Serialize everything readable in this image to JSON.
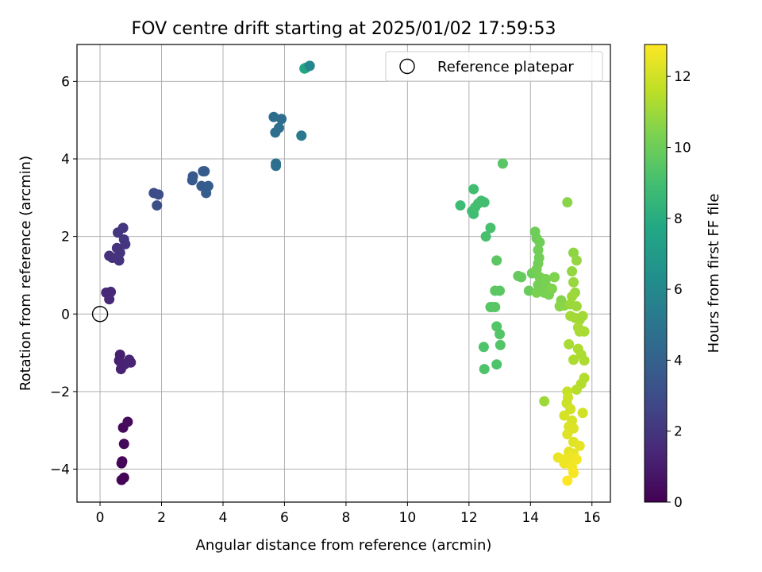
{
  "chart_data": {
    "type": "scatter",
    "title": "FOV centre drift starting at 2025/01/02 17:59:53",
    "xlabel": "Angular distance from reference (arcmin)",
    "ylabel": "Rotation from reference (arcmin)",
    "xlim": [
      -0.75,
      16.6
    ],
    "ylim": [
      -4.85,
      6.95
    ],
    "x_ticks": [
      0,
      2,
      4,
      6,
      8,
      10,
      12,
      14,
      16
    ],
    "y_ticks": [
      -4,
      -2,
      0,
      2,
      4,
      6
    ],
    "grid": true,
    "legend_position": "top-right",
    "legend": [
      "Reference platepar"
    ],
    "reference_point": [
      0,
      0
    ],
    "colorbar": {
      "label": "Hours from first FF file",
      "range": [
        0,
        12.9
      ],
      "ticks": [
        0,
        2,
        4,
        6,
        8,
        10,
        12
      ],
      "colormap": "viridis"
    },
    "points": [
      {
        "x": 0.78,
        "y": -4.22,
        "c": 0.1
      },
      {
        "x": 0.7,
        "y": -4.28,
        "c": 0.1
      },
      {
        "x": 0.72,
        "y": -3.8,
        "c": 0.2
      },
      {
        "x": 0.7,
        "y": -3.85,
        "c": 0.2
      },
      {
        "x": 0.78,
        "y": -3.35,
        "c": 0.3
      },
      {
        "x": 0.75,
        "y": -2.93,
        "c": 0.3
      },
      {
        "x": 0.9,
        "y": -2.78,
        "c": 0.4
      },
      {
        "x": 0.65,
        "y": -1.05,
        "c": 1.1
      },
      {
        "x": 0.62,
        "y": -1.2,
        "c": 1.1
      },
      {
        "x": 0.7,
        "y": -1.28,
        "c": 1.2
      },
      {
        "x": 0.68,
        "y": -1.42,
        "c": 1.2
      },
      {
        "x": 0.8,
        "y": -1.3,
        "c": 1.2
      },
      {
        "x": 0.95,
        "y": -1.18,
        "c": 1.3
      },
      {
        "x": 1.0,
        "y": -1.25,
        "c": 1.3
      },
      {
        "x": 0.2,
        "y": 0.55,
        "c": 1.5
      },
      {
        "x": 0.35,
        "y": 0.57,
        "c": 1.5
      },
      {
        "x": 0.3,
        "y": 0.38,
        "c": 1.5
      },
      {
        "x": 0.3,
        "y": 1.5,
        "c": 1.8
      },
      {
        "x": 0.4,
        "y": 1.45,
        "c": 1.8
      },
      {
        "x": 0.55,
        "y": 1.7,
        "c": 1.9
      },
      {
        "x": 0.65,
        "y": 1.58,
        "c": 1.9
      },
      {
        "x": 0.62,
        "y": 1.38,
        "c": 1.9
      },
      {
        "x": 0.58,
        "y": 2.1,
        "c": 2.0
      },
      {
        "x": 0.75,
        "y": 2.22,
        "c": 2.0
      },
      {
        "x": 0.78,
        "y": 1.92,
        "c": 2.0
      },
      {
        "x": 0.82,
        "y": 1.8,
        "c": 2.0
      },
      {
        "x": 1.75,
        "y": 3.12,
        "c": 3.0
      },
      {
        "x": 1.9,
        "y": 3.08,
        "c": 3.0
      },
      {
        "x": 1.85,
        "y": 2.8,
        "c": 3.1
      },
      {
        "x": 3.0,
        "y": 3.45,
        "c": 3.6
      },
      {
        "x": 3.02,
        "y": 3.55,
        "c": 3.6
      },
      {
        "x": 3.3,
        "y": 3.3,
        "c": 3.7
      },
      {
        "x": 3.35,
        "y": 3.68,
        "c": 3.7
      },
      {
        "x": 3.4,
        "y": 3.68,
        "c": 3.7
      },
      {
        "x": 3.45,
        "y": 3.12,
        "c": 3.8
      },
      {
        "x": 3.52,
        "y": 3.3,
        "c": 3.8
      },
      {
        "x": 5.65,
        "y": 5.08,
        "c": 4.6
      },
      {
        "x": 5.9,
        "y": 5.03,
        "c": 4.6
      },
      {
        "x": 5.82,
        "y": 4.8,
        "c": 4.7
      },
      {
        "x": 5.7,
        "y": 4.68,
        "c": 4.7
      },
      {
        "x": 5.72,
        "y": 3.88,
        "c": 4.7
      },
      {
        "x": 5.72,
        "y": 3.82,
        "c": 4.7
      },
      {
        "x": 6.55,
        "y": 4.6,
        "c": 5.2
      },
      {
        "x": 6.65,
        "y": 6.33,
        "c": 7.5
      },
      {
        "x": 6.7,
        "y": 6.35,
        "c": 7.5
      },
      {
        "x": 6.82,
        "y": 6.4,
        "c": 5.9
      },
      {
        "x": 11.72,
        "y": 2.8,
        "c": 8.8
      },
      {
        "x": 12.15,
        "y": 3.22,
        "c": 8.9
      },
      {
        "x": 12.1,
        "y": 2.65,
        "c": 8.9
      },
      {
        "x": 12.15,
        "y": 2.58,
        "c": 8.9
      },
      {
        "x": 12.3,
        "y": 2.85,
        "c": 9.0
      },
      {
        "x": 12.4,
        "y": 2.92,
        "c": 9.0
      },
      {
        "x": 12.5,
        "y": 2.88,
        "c": 9.0
      },
      {
        "x": 12.2,
        "y": 2.75,
        "c": 9.0
      },
      {
        "x": 12.7,
        "y": 2.22,
        "c": 9.1
      },
      {
        "x": 12.55,
        "y": 2.0,
        "c": 9.1
      },
      {
        "x": 13.1,
        "y": 3.88,
        "c": 9.5
      },
      {
        "x": 12.9,
        "y": 1.38,
        "c": 9.6
      },
      {
        "x": 12.85,
        "y": 0.6,
        "c": 9.6
      },
      {
        "x": 13.0,
        "y": 0.6,
        "c": 9.6
      },
      {
        "x": 12.7,
        "y": 0.18,
        "c": 9.5
      },
      {
        "x": 12.75,
        "y": 0.18,
        "c": 9.5
      },
      {
        "x": 12.85,
        "y": 0.18,
        "c": 9.5
      },
      {
        "x": 12.9,
        "y": -0.32,
        "c": 9.4
      },
      {
        "x": 13.0,
        "y": -0.52,
        "c": 9.4
      },
      {
        "x": 13.02,
        "y": -0.8,
        "c": 9.4
      },
      {
        "x": 12.48,
        "y": -0.85,
        "c": 9.3
      },
      {
        "x": 12.9,
        "y": -1.3,
        "c": 9.3
      },
      {
        "x": 12.5,
        "y": -1.42,
        "c": 9.3
      },
      {
        "x": 13.6,
        "y": 0.98,
        "c": 9.8
      },
      {
        "x": 13.7,
        "y": 0.95,
        "c": 9.8
      },
      {
        "x": 13.95,
        "y": 0.6,
        "c": 9.9
      },
      {
        "x": 14.05,
        "y": 1.05,
        "c": 10.0
      },
      {
        "x": 14.15,
        "y": 2.12,
        "c": 10.0
      },
      {
        "x": 14.2,
        "y": 1.95,
        "c": 10.0
      },
      {
        "x": 14.3,
        "y": 1.85,
        "c": 10.1
      },
      {
        "x": 14.25,
        "y": 1.65,
        "c": 10.1
      },
      {
        "x": 14.28,
        "y": 1.45,
        "c": 10.1
      },
      {
        "x": 14.25,
        "y": 1.3,
        "c": 10.1
      },
      {
        "x": 14.2,
        "y": 1.15,
        "c": 10.2
      },
      {
        "x": 14.3,
        "y": 0.95,
        "c": 10.2
      },
      {
        "x": 14.35,
        "y": 0.8,
        "c": 10.2
      },
      {
        "x": 14.4,
        "y": 0.7,
        "c": 10.3
      },
      {
        "x": 14.5,
        "y": 0.9,
        "c": 10.3
      },
      {
        "x": 14.55,
        "y": 0.7,
        "c": 10.3
      },
      {
        "x": 14.45,
        "y": 0.55,
        "c": 10.3
      },
      {
        "x": 14.2,
        "y": 0.55,
        "c": 10.3
      },
      {
        "x": 14.6,
        "y": 0.5,
        "c": 10.3
      },
      {
        "x": 14.7,
        "y": 0.65,
        "c": 10.4
      },
      {
        "x": 14.78,
        "y": 0.95,
        "c": 10.4
      },
      {
        "x": 14.25,
        "y": 0.75,
        "c": 10.2
      },
      {
        "x": 15.0,
        "y": 0.35,
        "c": 10.5
      },
      {
        "x": 14.95,
        "y": 0.2,
        "c": 10.6
      },
      {
        "x": 15.1,
        "y": 0.22,
        "c": 10.6
      },
      {
        "x": 15.2,
        "y": 2.88,
        "c": 10.6
      },
      {
        "x": 15.4,
        "y": 1.58,
        "c": 10.7
      },
      {
        "x": 15.5,
        "y": 1.38,
        "c": 10.8
      },
      {
        "x": 15.35,
        "y": 1.1,
        "c": 10.8
      },
      {
        "x": 15.4,
        "y": 0.82,
        "c": 10.9
      },
      {
        "x": 15.45,
        "y": 0.55,
        "c": 10.9
      },
      {
        "x": 15.35,
        "y": 0.45,
        "c": 11.0
      },
      {
        "x": 15.3,
        "y": 0.25,
        "c": 11.0
      },
      {
        "x": 15.5,
        "y": 0.2,
        "c": 11.0
      },
      {
        "x": 15.3,
        "y": -0.05,
        "c": 11.1
      },
      {
        "x": 15.45,
        "y": -0.1,
        "c": 11.1
      },
      {
        "x": 15.6,
        "y": -0.15,
        "c": 11.1
      },
      {
        "x": 15.7,
        "y": -0.05,
        "c": 11.1
      },
      {
        "x": 15.55,
        "y": -0.35,
        "c": 11.2
      },
      {
        "x": 15.6,
        "y": -0.45,
        "c": 11.2
      },
      {
        "x": 15.75,
        "y": -0.45,
        "c": 11.2
      },
      {
        "x": 15.25,
        "y": -0.78,
        "c": 11.2
      },
      {
        "x": 15.55,
        "y": -0.9,
        "c": 11.3
      },
      {
        "x": 15.65,
        "y": -1.05,
        "c": 11.3
      },
      {
        "x": 15.75,
        "y": -1.2,
        "c": 11.3
      },
      {
        "x": 15.4,
        "y": -1.18,
        "c": 11.3
      },
      {
        "x": 15.75,
        "y": -1.65,
        "c": 11.4
      },
      {
        "x": 15.65,
        "y": -1.8,
        "c": 11.4
      },
      {
        "x": 15.5,
        "y": -1.95,
        "c": 11.5
      },
      {
        "x": 14.45,
        "y": -2.25,
        "c": 11.0
      },
      {
        "x": 15.2,
        "y": -2.0,
        "c": 11.8
      },
      {
        "x": 15.22,
        "y": -2.15,
        "c": 11.9
      },
      {
        "x": 15.18,
        "y": -2.3,
        "c": 11.9
      },
      {
        "x": 15.3,
        "y": -2.45,
        "c": 12.0
      },
      {
        "x": 15.7,
        "y": -2.55,
        "c": 12.0
      },
      {
        "x": 15.1,
        "y": -2.62,
        "c": 12.1
      },
      {
        "x": 15.35,
        "y": -2.75,
        "c": 12.1
      },
      {
        "x": 15.25,
        "y": -2.9,
        "c": 12.2
      },
      {
        "x": 15.4,
        "y": -2.95,
        "c": 12.2
      },
      {
        "x": 15.2,
        "y": -3.1,
        "c": 12.3
      },
      {
        "x": 15.4,
        "y": -3.3,
        "c": 12.3
      },
      {
        "x": 15.6,
        "y": -3.4,
        "c": 12.4
      },
      {
        "x": 15.25,
        "y": -3.55,
        "c": 12.4
      },
      {
        "x": 15.4,
        "y": -3.6,
        "c": 12.5
      },
      {
        "x": 14.9,
        "y": -3.7,
        "c": 12.5
      },
      {
        "x": 15.05,
        "y": -3.75,
        "c": 12.6
      },
      {
        "x": 15.1,
        "y": -3.85,
        "c": 12.6
      },
      {
        "x": 15.3,
        "y": -3.7,
        "c": 12.6
      },
      {
        "x": 15.5,
        "y": -3.75,
        "c": 12.7
      },
      {
        "x": 15.35,
        "y": -3.95,
        "c": 12.7
      },
      {
        "x": 15.4,
        "y": -4.1,
        "c": 12.8
      },
      {
        "x": 15.2,
        "y": -4.3,
        "c": 12.9
      }
    ]
  }
}
